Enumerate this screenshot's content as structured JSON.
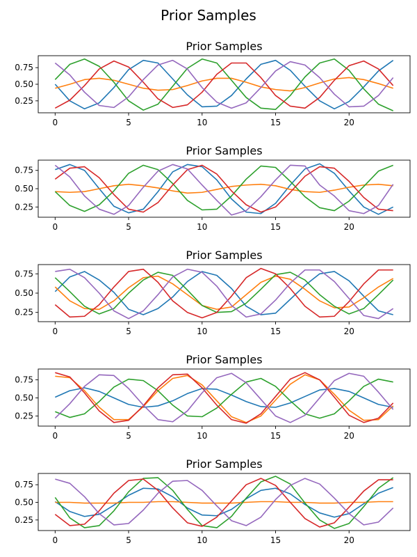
{
  "figure_title": "Prior Samples",
  "colors": [
    "#1f77b4",
    "#ff7f0e",
    "#2ca02c",
    "#d62728",
    "#9467bd"
  ],
  "chart_data": [
    {
      "type": "line",
      "title": "Prior Samples",
      "xlim": [
        -1.15,
        24.15
      ],
      "ylim": [
        0.07,
        0.93
      ],
      "xticks": [
        0,
        5,
        10,
        15,
        20
      ],
      "yticks": [
        0.25,
        0.5,
        0.75
      ],
      "ytick_labels": [
        "0.25",
        "0.50",
        "0.75"
      ],
      "x": [
        0,
        1,
        2,
        3,
        4,
        5,
        6,
        7,
        8,
        9,
        10,
        11,
        12,
        13,
        14,
        15,
        16,
        17,
        18,
        19,
        20,
        21,
        22,
        23
      ],
      "series": [
        {
          "values": [
            0.5,
            0.25,
            0.13,
            0.22,
            0.45,
            0.72,
            0.86,
            0.82,
            0.58,
            0.34,
            0.16,
            0.17,
            0.33,
            0.58,
            0.8,
            0.86,
            0.71,
            0.47,
            0.25,
            0.13,
            0.24,
            0.46,
            0.7,
            0.86
          ]
        },
        {
          "values": [
            0.44,
            0.5,
            0.57,
            0.59,
            0.56,
            0.5,
            0.44,
            0.41,
            0.42,
            0.48,
            0.55,
            0.59,
            0.59,
            0.53,
            0.46,
            0.42,
            0.4,
            0.45,
            0.52,
            0.58,
            0.6,
            0.57,
            0.51,
            0.44
          ]
        },
        {
          "values": [
            0.57,
            0.8,
            0.88,
            0.77,
            0.53,
            0.25,
            0.11,
            0.2,
            0.47,
            0.74,
            0.88,
            0.82,
            0.56,
            0.3,
            0.14,
            0.12,
            0.33,
            0.61,
            0.82,
            0.88,
            0.71,
            0.43,
            0.2,
            0.1
          ]
        },
        {
          "values": [
            0.14,
            0.26,
            0.48,
            0.73,
            0.85,
            0.76,
            0.53,
            0.28,
            0.15,
            0.19,
            0.38,
            0.65,
            0.82,
            0.82,
            0.6,
            0.33,
            0.17,
            0.14,
            0.3,
            0.56,
            0.78,
            0.85,
            0.73,
            0.48
          ]
        },
        {
          "values": [
            0.82,
            0.64,
            0.38,
            0.18,
            0.15,
            0.31,
            0.57,
            0.79,
            0.86,
            0.73,
            0.45,
            0.23,
            0.14,
            0.22,
            0.45,
            0.7,
            0.84,
            0.79,
            0.6,
            0.35,
            0.16,
            0.17,
            0.33,
            0.6
          ]
        }
      ]
    },
    {
      "type": "line",
      "title": "Prior Samples",
      "xlim": [
        -1.15,
        24.15
      ],
      "ylim": [
        0.11,
        0.89
      ],
      "xticks": [
        0,
        5,
        10,
        15,
        20
      ],
      "yticks": [
        0.25,
        0.5,
        0.75
      ],
      "ytick_labels": [
        "0.25",
        "0.50",
        "0.75"
      ],
      "x": [
        0,
        1,
        2,
        3,
        4,
        5,
        6,
        7,
        8,
        9,
        10,
        11,
        12,
        13,
        14,
        15,
        16,
        17,
        18,
        19,
        20,
        21,
        22,
        23
      ],
      "series": [
        {
          "values": [
            0.76,
            0.83,
            0.75,
            0.5,
            0.26,
            0.17,
            0.22,
            0.46,
            0.73,
            0.83,
            0.8,
            0.62,
            0.36,
            0.18,
            0.16,
            0.3,
            0.55,
            0.77,
            0.84,
            0.71,
            0.47,
            0.25,
            0.15,
            0.25
          ]
        },
        {
          "values": [
            0.46,
            0.45,
            0.46,
            0.5,
            0.54,
            0.56,
            0.54,
            0.51,
            0.47,
            0.44,
            0.45,
            0.49,
            0.53,
            0.55,
            0.56,
            0.54,
            0.49,
            0.46,
            0.45,
            0.48,
            0.52,
            0.55,
            0.56,
            0.54
          ]
        },
        {
          "values": [
            0.46,
            0.27,
            0.19,
            0.28,
            0.47,
            0.71,
            0.82,
            0.76,
            0.57,
            0.34,
            0.21,
            0.22,
            0.4,
            0.63,
            0.81,
            0.79,
            0.6,
            0.39,
            0.24,
            0.2,
            0.33,
            0.53,
            0.74,
            0.82
          ]
        },
        {
          "values": [
            0.63,
            0.78,
            0.8,
            0.65,
            0.42,
            0.22,
            0.18,
            0.31,
            0.55,
            0.76,
            0.82,
            0.7,
            0.47,
            0.28,
            0.18,
            0.25,
            0.45,
            0.67,
            0.8,
            0.78,
            0.6,
            0.38,
            0.22,
            0.2
          ]
        },
        {
          "values": [
            0.82,
            0.66,
            0.4,
            0.22,
            0.15,
            0.27,
            0.52,
            0.74,
            0.83,
            0.77,
            0.55,
            0.34,
            0.14,
            0.2,
            0.39,
            0.62,
            0.82,
            0.81,
            0.55,
            0.4,
            0.2,
            0.16,
            0.27,
            0.56
          ]
        }
      ]
    },
    {
      "type": "line",
      "title": "Prior Samples",
      "xlim": [
        -1.15,
        24.15
      ],
      "ylim": [
        0.13,
        0.87
      ],
      "xticks": [
        0,
        5,
        10,
        15,
        20
      ],
      "yticks": [
        0.25,
        0.5,
        0.75
      ],
      "ytick_labels": [
        "0.25",
        "0.50",
        "0.75"
      ],
      "x": [
        0,
        1,
        2,
        3,
        4,
        5,
        6,
        7,
        8,
        9,
        10,
        11,
        12,
        13,
        14,
        15,
        16,
        17,
        18,
        19,
        20,
        21,
        22,
        23
      ],
      "series": [
        {
          "values": [
            0.52,
            0.71,
            0.78,
            0.67,
            0.51,
            0.29,
            0.22,
            0.3,
            0.45,
            0.65,
            0.78,
            0.73,
            0.56,
            0.33,
            0.22,
            0.24,
            0.42,
            0.6,
            0.75,
            0.78,
            0.66,
            0.46,
            0.27,
            0.22
          ]
        },
        {
          "values": [
            0.58,
            0.4,
            0.3,
            0.29,
            0.4,
            0.57,
            0.7,
            0.72,
            0.62,
            0.48,
            0.34,
            0.29,
            0.32,
            0.48,
            0.64,
            0.72,
            0.68,
            0.55,
            0.4,
            0.31,
            0.32,
            0.44,
            0.58,
            0.69
          ]
        },
        {
          "values": [
            0.7,
            0.52,
            0.33,
            0.23,
            0.3,
            0.5,
            0.67,
            0.77,
            0.73,
            0.54,
            0.34,
            0.25,
            0.26,
            0.37,
            0.55,
            0.74,
            0.77,
            0.67,
            0.48,
            0.33,
            0.23,
            0.3,
            0.48,
            0.67
          ]
        },
        {
          "values": [
            0.35,
            0.19,
            0.2,
            0.35,
            0.58,
            0.78,
            0.81,
            0.64,
            0.4,
            0.25,
            0.18,
            0.25,
            0.46,
            0.7,
            0.82,
            0.75,
            0.56,
            0.33,
            0.19,
            0.2,
            0.39,
            0.62,
            0.8,
            0.8
          ]
        },
        {
          "values": [
            0.78,
            0.81,
            0.7,
            0.5,
            0.27,
            0.17,
            0.27,
            0.48,
            0.71,
            0.81,
            0.77,
            0.59,
            0.34,
            0.19,
            0.23,
            0.41,
            0.63,
            0.8,
            0.8,
            0.65,
            0.43,
            0.21,
            0.17,
            0.3
          ]
        }
      ]
    },
    {
      "type": "line",
      "title": "Prior Samples",
      "xlim": [
        -1.15,
        24.15
      ],
      "ylim": [
        0.11,
        0.9
      ],
      "xticks": [
        0,
        5,
        10,
        15,
        20
      ],
      "yticks": [
        0.25,
        0.5,
        0.75
      ],
      "ytick_labels": [
        "0.25",
        "0.50",
        "0.75"
      ],
      "x": [
        0,
        1,
        2,
        3,
        4,
        5,
        6,
        7,
        8,
        9,
        10,
        11,
        12,
        13,
        14,
        15,
        16,
        17,
        18,
        19,
        20,
        21,
        22,
        23
      ],
      "series": [
        {
          "values": [
            0.51,
            0.6,
            0.64,
            0.59,
            0.5,
            0.41,
            0.37,
            0.39,
            0.46,
            0.56,
            0.63,
            0.62,
            0.54,
            0.45,
            0.38,
            0.37,
            0.43,
            0.52,
            0.61,
            0.63,
            0.59,
            0.5,
            0.41,
            0.37
          ]
        },
        {
          "values": [
            0.8,
            0.78,
            0.6,
            0.37,
            0.2,
            0.2,
            0.38,
            0.6,
            0.77,
            0.81,
            0.68,
            0.46,
            0.24,
            0.16,
            0.25,
            0.47,
            0.69,
            0.82,
            0.75,
            0.55,
            0.33,
            0.19,
            0.2,
            0.39
          ]
        },
        {
          "values": [
            0.31,
            0.23,
            0.28,
            0.45,
            0.65,
            0.76,
            0.74,
            0.6,
            0.4,
            0.25,
            0.24,
            0.36,
            0.55,
            0.72,
            0.77,
            0.66,
            0.46,
            0.28,
            0.22,
            0.28,
            0.46,
            0.66,
            0.76,
            0.72
          ]
        },
        {
          "values": [
            0.85,
            0.79,
            0.57,
            0.32,
            0.16,
            0.19,
            0.39,
            0.64,
            0.82,
            0.83,
            0.64,
            0.4,
            0.2,
            0.15,
            0.28,
            0.52,
            0.76,
            0.85,
            0.75,
            0.51,
            0.26,
            0.16,
            0.22,
            0.43
          ]
        },
        {
          "values": [
            0.22,
            0.42,
            0.66,
            0.82,
            0.81,
            0.63,
            0.4,
            0.2,
            0.17,
            0.32,
            0.57,
            0.78,
            0.84,
            0.71,
            0.48,
            0.25,
            0.16,
            0.26,
            0.5,
            0.74,
            0.84,
            0.8,
            0.58,
            0.34
          ]
        }
      ]
    },
    {
      "type": "line",
      "title": "Prior Samples",
      "xlim": [
        -1.15,
        24.15
      ],
      "ylim": [
        0.1,
        0.91
      ],
      "xticks": [
        0,
        5,
        10,
        15,
        20
      ],
      "yticks": [
        0.25,
        0.5,
        0.75
      ],
      "ytick_labels": [
        "0.25",
        "0.50",
        "0.75"
      ],
      "x": [
        0,
        1,
        2,
        3,
        4,
        5,
        6,
        7,
        8,
        9,
        10,
        11,
        12,
        13,
        14,
        15,
        16,
        17,
        18,
        19,
        20,
        21,
        22,
        23
      ],
      "series": [
        {
          "values": [
            0.51,
            0.37,
            0.3,
            0.33,
            0.46,
            0.6,
            0.7,
            0.69,
            0.58,
            0.42,
            0.32,
            0.31,
            0.4,
            0.55,
            0.67,
            0.7,
            0.62,
            0.47,
            0.35,
            0.29,
            0.34,
            0.48,
            0.63,
            0.71
          ]
        },
        {
          "values": [
            0.5,
            0.5,
            0.49,
            0.49,
            0.49,
            0.5,
            0.5,
            0.51,
            0.51,
            0.5,
            0.49,
            0.49,
            0.49,
            0.5,
            0.51,
            0.51,
            0.5,
            0.5,
            0.49,
            0.49,
            0.5,
            0.5,
            0.51,
            0.51
          ]
        },
        {
          "values": [
            0.57,
            0.28,
            0.14,
            0.17,
            0.38,
            0.65,
            0.84,
            0.85,
            0.67,
            0.4,
            0.17,
            0.14,
            0.3,
            0.56,
            0.79,
            0.87,
            0.76,
            0.49,
            0.25,
            0.13,
            0.2,
            0.44,
            0.7,
            0.85
          ]
        },
        {
          "values": [
            0.33,
            0.17,
            0.19,
            0.38,
            0.63,
            0.81,
            0.83,
            0.67,
            0.42,
            0.21,
            0.16,
            0.29,
            0.52,
            0.75,
            0.84,
            0.74,
            0.5,
            0.27,
            0.15,
            0.21,
            0.43,
            0.66,
            0.82,
            0.82
          ]
        },
        {
          "values": [
            0.83,
            0.77,
            0.58,
            0.34,
            0.18,
            0.2,
            0.39,
            0.63,
            0.8,
            0.81,
            0.67,
            0.45,
            0.24,
            0.17,
            0.29,
            0.54,
            0.74,
            0.84,
            0.76,
            0.56,
            0.34,
            0.18,
            0.22,
            0.42
          ]
        }
      ]
    }
  ]
}
